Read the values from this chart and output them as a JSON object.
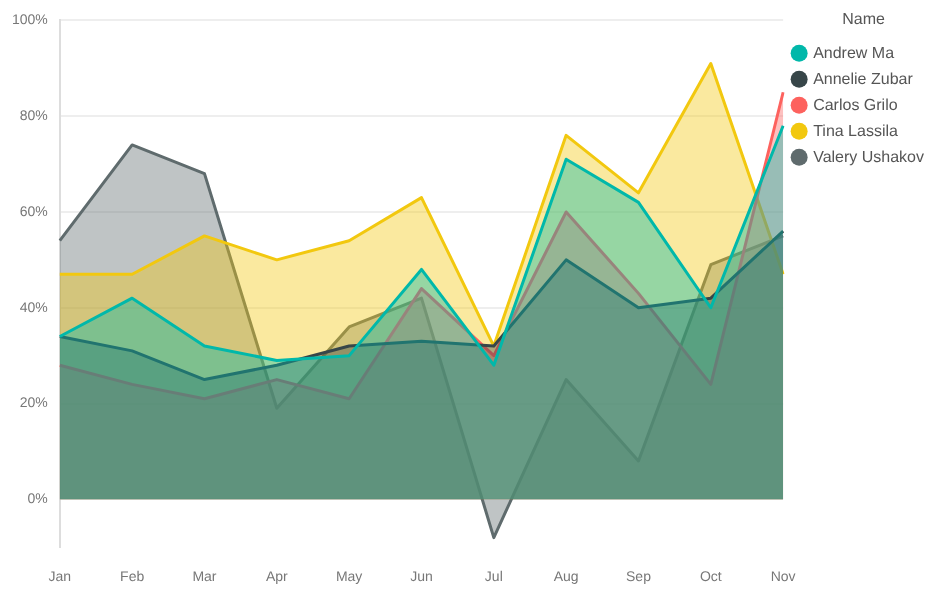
{
  "chart_data": {
    "type": "area",
    "legend_title": "Name",
    "legend": "top right",
    "grid": "y",
    "marker": "none",
    "categories": [
      "Jan",
      "Feb",
      "Mar",
      "Apr",
      "May",
      "Jun",
      "Jul",
      "Aug",
      "Sep",
      "Oct",
      "Nov"
    ],
    "ylim": [
      -10,
      100
    ],
    "yticks": [
      {
        "value": 0,
        "label": "0%"
      },
      {
        "value": 20,
        "label": "20%"
      },
      {
        "value": 40,
        "label": "40%"
      },
      {
        "value": 60,
        "label": "60%"
      },
      {
        "value": 80,
        "label": "80%"
      },
      {
        "value": 100,
        "label": "100%"
      }
    ],
    "series": [
      {
        "name": "Andrew Ma",
        "color": "#01b8aa",
        "values": [
          34,
          42,
          32,
          29,
          30,
          48,
          28,
          71,
          62,
          40,
          78
        ]
      },
      {
        "name": "Annelie Zubar",
        "color": "#374649",
        "values": [
          34,
          31,
          25,
          28,
          32,
          33,
          32,
          50,
          40,
          42,
          56
        ]
      },
      {
        "name": "Carlos Grilo",
        "color": "#fd625e",
        "values": [
          28,
          24,
          21,
          25,
          21,
          44,
          30,
          60,
          43,
          24,
          85
        ]
      },
      {
        "name": "Tina Lassila",
        "color": "#f2c80f",
        "values": [
          47,
          47,
          55,
          50,
          54,
          63,
          32,
          76,
          64,
          91,
          47
        ]
      },
      {
        "name": "Valery Ushakov",
        "color": "#5f6b6d",
        "values": [
          54,
          74,
          68,
          19,
          36,
          42,
          -8,
          25,
          8,
          49,
          55
        ]
      }
    ]
  }
}
